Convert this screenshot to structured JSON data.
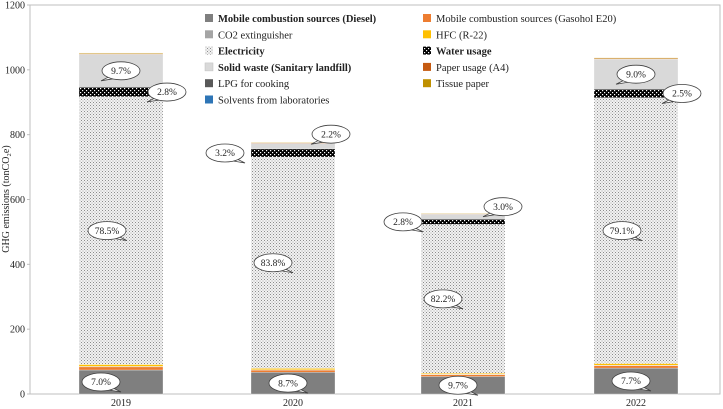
{
  "chart_data": {
    "type": "bar",
    "stacked": true,
    "ylabel": "GHG emissions (tonCO₂e)",
    "ylim": [
      0,
      1200
    ],
    "yticks": [
      0,
      200,
      400,
      600,
      800,
      1000,
      1200
    ],
    "categories": [
      "2019",
      "2020",
      "2021",
      "2022"
    ],
    "series": [
      {
        "name": "Mobile combustion sources (Diesel)",
        "color": "#7f7f7f",
        "pattern": "solid",
        "legend_bold": true,
        "values": [
          74,
          67,
          54,
          80
        ]
      },
      {
        "name": "Mobile combustion sources (Gasohol E20)",
        "color": "#ed7d31",
        "pattern": "solid",
        "legend_bold": false,
        "values": [
          10,
          7,
          6,
          8
        ]
      },
      {
        "name": "CO2 extinguisher",
        "color": "#a5a5a5",
        "pattern": "solid",
        "legend_bold": false,
        "values": [
          1,
          1,
          1,
          1
        ]
      },
      {
        "name": "HFC (R-22)",
        "color": "#ffc000",
        "pattern": "solid",
        "legend_bold": false,
        "values": [
          6,
          4,
          3,
          5
        ]
      },
      {
        "name": "Electricity",
        "color": "#d9d9d9",
        "pattern": "dots",
        "legend_bold": true,
        "values": [
          826,
          652,
          459,
          820
        ]
      },
      {
        "name": "Water usage",
        "color": "#000000",
        "pattern": "checker",
        "legend_bold": true,
        "values": [
          29,
          25,
          16,
          26
        ]
      },
      {
        "name": "Solid waste (Sanitary landfill)",
        "color": "#d9d9d9",
        "pattern": "solid",
        "legend_bold": true,
        "values": [
          102,
          17,
          16,
          93
        ]
      },
      {
        "name": "Paper usage (A4)",
        "color": "#c55a11",
        "pattern": "solid",
        "legend_bold": false,
        "values": [
          2,
          2,
          1,
          2
        ]
      },
      {
        "name": "LPG for cooking",
        "color": "#595959",
        "pattern": "solid",
        "legend_bold": false,
        "values": [
          0,
          0,
          0,
          0
        ]
      },
      {
        "name": "Tissue paper",
        "color": "#bf9000",
        "pattern": "solid",
        "legend_bold": false,
        "values": [
          2,
          1,
          1,
          2
        ]
      },
      {
        "name": "Solvents from laboratories",
        "color": "#2e75b6",
        "pattern": "solid",
        "legend_bold": false,
        "values": [
          0,
          0,
          0,
          0
        ]
      }
    ],
    "annotations": [
      {
        "category": "2019",
        "series": "Mobile combustion sources (Diesel)",
        "label": "7.0%"
      },
      {
        "category": "2019",
        "series": "Electricity",
        "label": "78.5%"
      },
      {
        "category": "2019",
        "series": "Water usage",
        "label": "2.8%"
      },
      {
        "category": "2019",
        "series": "Solid waste (Sanitary landfill)",
        "label": "9.7%"
      },
      {
        "category": "2020",
        "series": "Mobile combustion sources (Diesel)",
        "label": "8.7%"
      },
      {
        "category": "2020",
        "series": "Electricity",
        "label": "83.8%"
      },
      {
        "category": "2020",
        "series": "Water usage",
        "label": "3.2%"
      },
      {
        "category": "2020",
        "series": "Solid waste (Sanitary landfill)",
        "label": "2.2%"
      },
      {
        "category": "2021",
        "series": "Mobile combustion sources (Diesel)",
        "label": "9.7%"
      },
      {
        "category": "2021",
        "series": "Electricity",
        "label": "82.2%"
      },
      {
        "category": "2021",
        "series": "Water usage",
        "label": "2.8%"
      },
      {
        "category": "2021",
        "series": "Solid waste (Sanitary landfill)",
        "label": "3.0%"
      },
      {
        "category": "2022",
        "series": "Mobile combustion sources (Diesel)",
        "label": "7.7%"
      },
      {
        "category": "2022",
        "series": "Electricity",
        "label": "79.1%"
      },
      {
        "category": "2022",
        "series": "Water usage",
        "label": "2.5%"
      },
      {
        "category": "2022",
        "series": "Solid waste (Sanitary landfill)",
        "label": "9.0%"
      }
    ],
    "grid": false,
    "legend_position": "top-center",
    "legend_columns": 2
  }
}
